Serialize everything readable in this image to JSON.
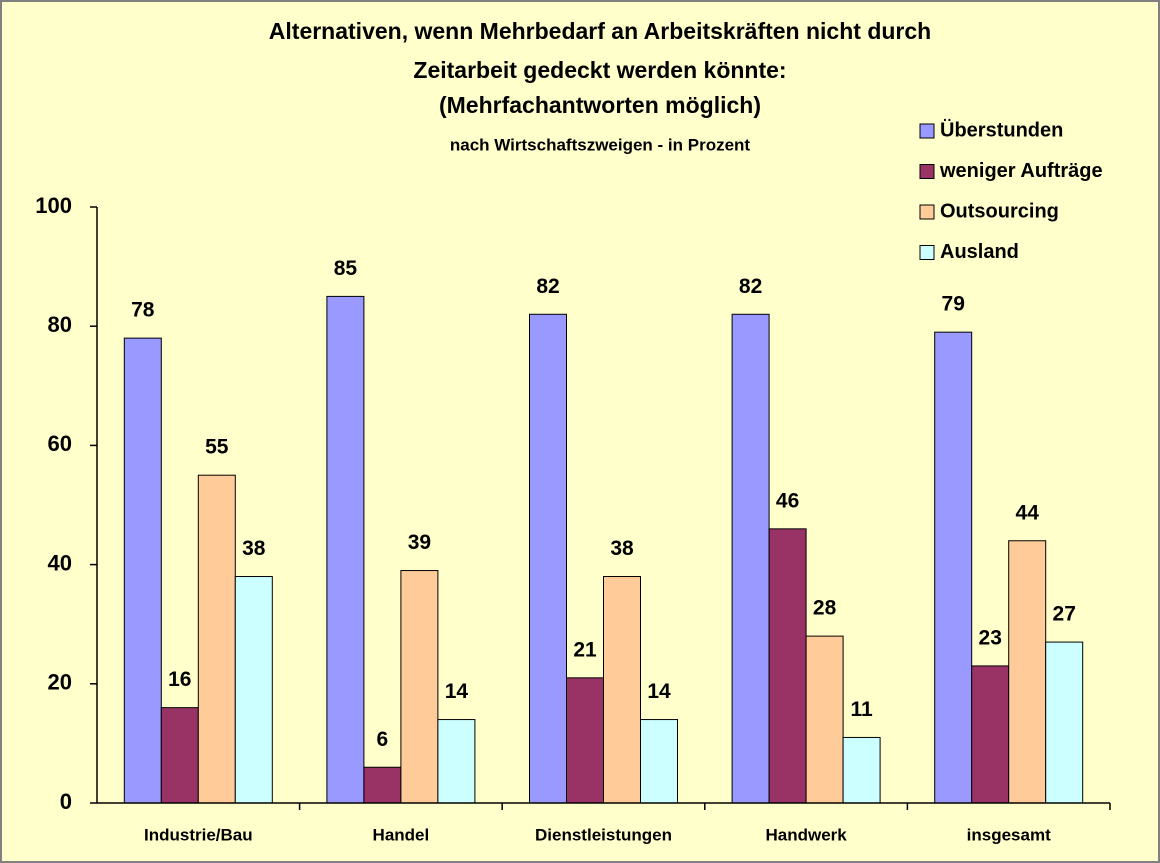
{
  "chart_data": {
    "type": "bar",
    "title": [
      "Alternativen, wenn Mehrbedarf an Arbeitskräften nicht durch",
      "Zeitarbeit gedeckt werden könnte:",
      "(Mehrfachantworten möglich)"
    ],
    "subtitle": "nach Wirtschaftszweigen - in Prozent",
    "categories": [
      "Industrie/Bau",
      "Handel",
      "Dienstleistungen",
      "Handwerk",
      "insgesamt"
    ],
    "series": [
      {
        "name": "Überstunden",
        "color": "#9999ff",
        "values": [
          78,
          85,
          82,
          82,
          79
        ]
      },
      {
        "name": "weniger Aufträge",
        "color": "#993366",
        "values": [
          16,
          6,
          21,
          46,
          23
        ]
      },
      {
        "name": "Outsourcing",
        "color": "#ffcc99",
        "values": [
          55,
          39,
          38,
          28,
          44
        ]
      },
      {
        "name": "Ausland",
        "color": "#ccffff",
        "values": [
          38,
          14,
          14,
          11,
          27
        ]
      }
    ],
    "ylim": [
      0,
      100
    ],
    "yticks": [
      0,
      20,
      40,
      60,
      80,
      100
    ],
    "grid": false,
    "legend": "top-right"
  }
}
